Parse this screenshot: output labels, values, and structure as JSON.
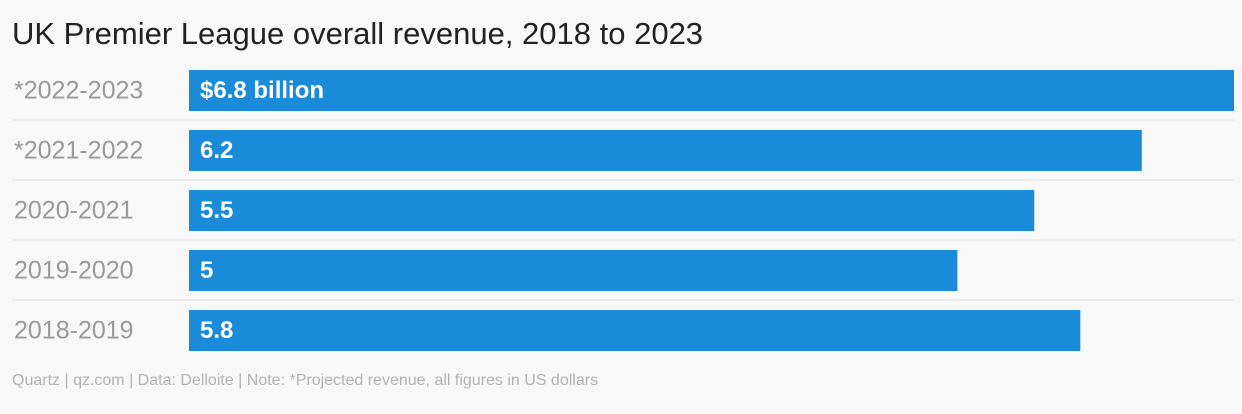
{
  "title": "UK Premier League overall revenue, 2018 to 2023",
  "footer": "Quartz | qz.com | Data: Delloite | Note: *Projected revenue, all figures in US dollars",
  "colors": {
    "bar": "#1a8bd8",
    "background": "#f8f8f8",
    "separator": "#e2e2e2"
  },
  "chart_data": {
    "type": "bar",
    "orientation": "horizontal",
    "title": "UK Premier League overall revenue, 2018 to 2023",
    "categories": [
      "*2022-2023",
      "*2021-2022",
      "2020-2021",
      "2019-2020",
      "2018-2019"
    ],
    "values": [
      6.8,
      6.2,
      5.5,
      5,
      5.8
    ],
    "data_labels": [
      "$6.8 billion",
      "6.2",
      "5.5",
      "5",
      "5.8"
    ],
    "xlim": [
      0,
      6.8
    ],
    "unit": "US dollars (billions)",
    "grid": false,
    "legend": "none"
  }
}
